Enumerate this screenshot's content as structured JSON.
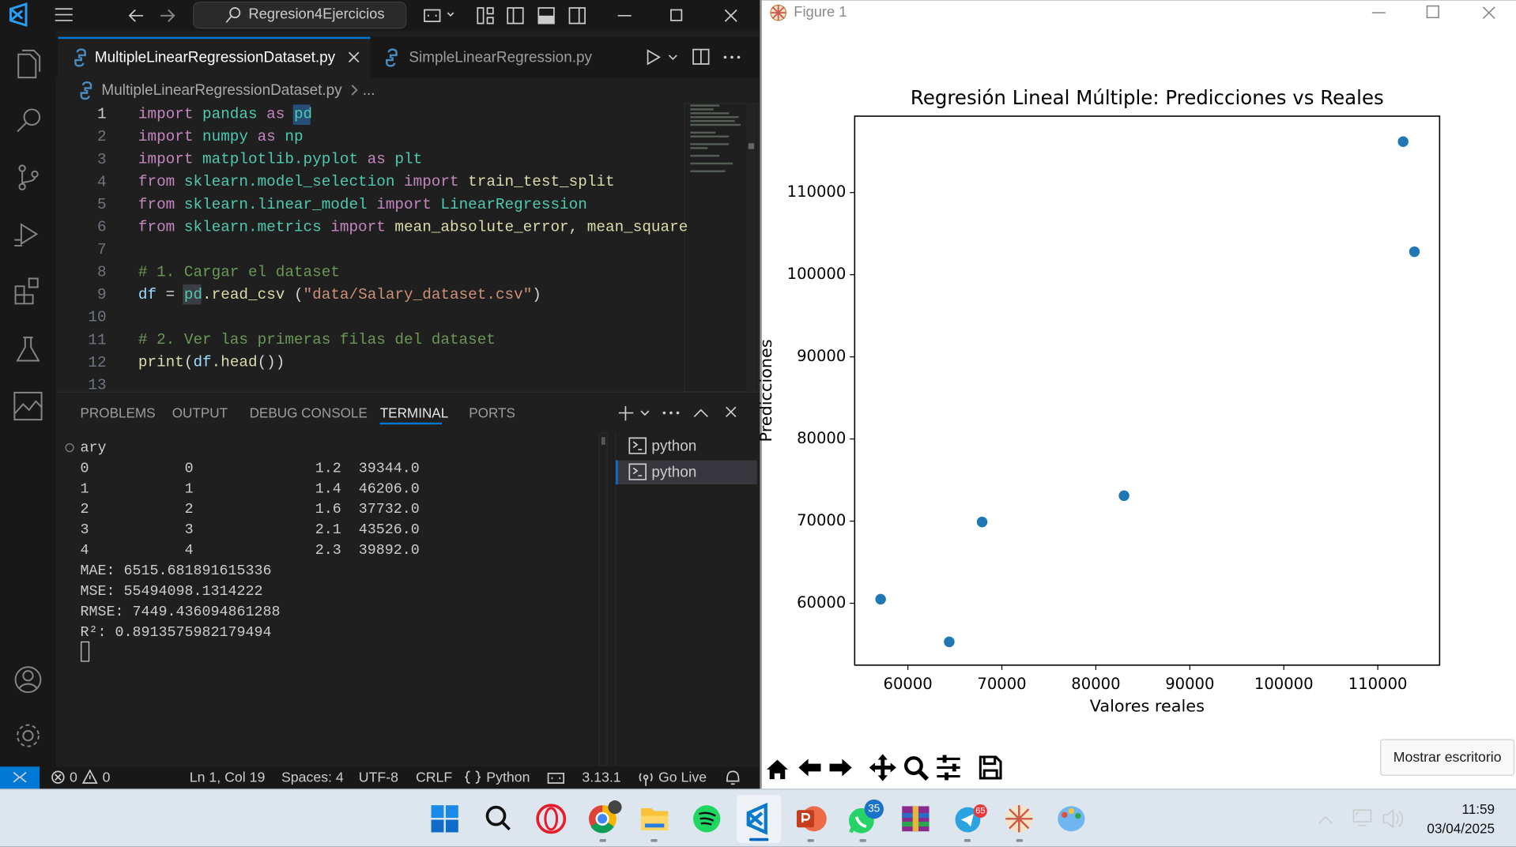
{
  "titlebar": {
    "search": "Regresion4Ejercicios"
  },
  "editor": {
    "tabs": [
      "MultipleLinearRegressionDataset.py",
      "SimpleLinearRegression.py"
    ],
    "breadcrumb": "MultipleLinearRegressionDataset.py",
    "breadcrumb_more": "...",
    "line_numbers": [
      1,
      2,
      3,
      4,
      5,
      6,
      7,
      8,
      9,
      10,
      11,
      12,
      13
    ],
    "code": [
      [
        [
          "import",
          "#c586c0"
        ],
        [
          " pandas",
          "#4ec9b0"
        ],
        [
          " as",
          "#c586c0"
        ],
        [
          " pd",
          "#4ec9b0"
        ]
      ],
      [
        [
          "import",
          "#c586c0"
        ],
        [
          " numpy",
          "#4ec9b0"
        ],
        [
          " as",
          "#c586c0"
        ],
        [
          " np",
          "#4ec9b0"
        ]
      ],
      [
        [
          "import",
          "#c586c0"
        ],
        [
          " matplotlib.pyplot",
          "#4ec9b0"
        ],
        [
          " as",
          "#c586c0"
        ],
        [
          " plt",
          "#4ec9b0"
        ]
      ],
      [
        [
          "from",
          "#c586c0"
        ],
        [
          " sklearn.model_selection",
          "#4ec9b0"
        ],
        [
          " import",
          "#c586c0"
        ],
        [
          " train_test_split",
          "#dcdcaa"
        ]
      ],
      [
        [
          "from",
          "#c586c0"
        ],
        [
          " sklearn.linear_model",
          "#4ec9b0"
        ],
        [
          " import",
          "#c586c0"
        ],
        [
          " LinearRegression",
          "#4ec9b0"
        ]
      ],
      [
        [
          "from",
          "#c586c0"
        ],
        [
          " sklearn.metrics",
          "#4ec9b0"
        ],
        [
          " import",
          "#c586c0"
        ],
        [
          " mean_absolute_error, mean_square",
          "#dcdcaa"
        ]
      ],
      [],
      [
        [
          "# 1. Cargar el dataset",
          "#6a9955"
        ]
      ],
      [
        [
          "df",
          "#9cdcfe"
        ],
        [
          " = ",
          "#d4d4d4"
        ],
        [
          "pd",
          "#4ec9b0"
        ],
        [
          ".read_csv",
          "#dcdcaa"
        ],
        [
          " (",
          "#d4d4d4"
        ],
        [
          "\"data/Salary_dataset.csv\"",
          "#ce9178"
        ],
        [
          ")",
          "#d4d4d4"
        ]
      ],
      [],
      [
        [
          "# 2. Ver las primeras filas del dataset",
          "#6a9955"
        ]
      ],
      [
        [
          "print",
          "#dcdcaa"
        ],
        [
          "(",
          "#d4d4d4"
        ],
        [
          "df",
          "#9cdcfe"
        ],
        [
          ".head",
          "#dcdcaa"
        ],
        [
          "())",
          "#d4d4d4"
        ]
      ],
      []
    ]
  },
  "panel": {
    "tabs": [
      "PROBLEMS",
      "OUTPUT",
      "DEBUG CONSOLE",
      "TERMINAL",
      "PORTS"
    ],
    "active": 3
  },
  "terminal": {
    "header": "ary",
    "rows": [
      [
        "0",
        "0",
        "1.2",
        "39344.0"
      ],
      [
        "1",
        "1",
        "1.4",
        "46206.0"
      ],
      [
        "2",
        "2",
        "1.6",
        "37732.0"
      ],
      [
        "3",
        "3",
        "2.1",
        "43526.0"
      ],
      [
        "4",
        "4",
        "2.3",
        "39892.0"
      ]
    ],
    "metrics": [
      "MAE: 6515.681891615336",
      "MSE: 55494098.1314222",
      "RMSE: 7449.436094861288",
      "R²: 0.8913575982179494"
    ],
    "sessions": [
      "python",
      "python"
    ]
  },
  "status_bar": {
    "errors": 0,
    "warnings": 0,
    "position": "Ln 1, Col 19",
    "spaces": "Spaces: 4",
    "encoding": "UTF-8",
    "eol": "CRLF",
    "language": "Python",
    "python_version": "3.13.1",
    "go_live": "Go Live"
  },
  "figure": {
    "window_title": "Figure 1",
    "chart": {
      "type": "scatter",
      "title": "Regresión Lineal Múltiple: Predicciones vs Reales",
      "x_label": "Valores reales",
      "y_label": "Predicciones",
      "x": [
        57100,
        64400,
        67900,
        83000,
        112700,
        113900
      ],
      "y": [
        60500,
        55300,
        69900,
        73100,
        116200,
        102800
      ],
      "color": "#1f77b4",
      "xlim": [
        54340,
        116580
      ],
      "ylim": [
        52470,
        119300
      ],
      "xticks": [
        60000,
        70000,
        80000,
        90000,
        100000,
        110000
      ],
      "yticks": [
        60000,
        70000,
        80000,
        90000,
        100000,
        110000
      ]
    }
  },
  "tooltip": "Mostrar escritorio",
  "taskbar": {
    "whatsapp_badge": 35,
    "telegram_badge": 65,
    "time": "11:59",
    "date": "03/04/2025"
  }
}
